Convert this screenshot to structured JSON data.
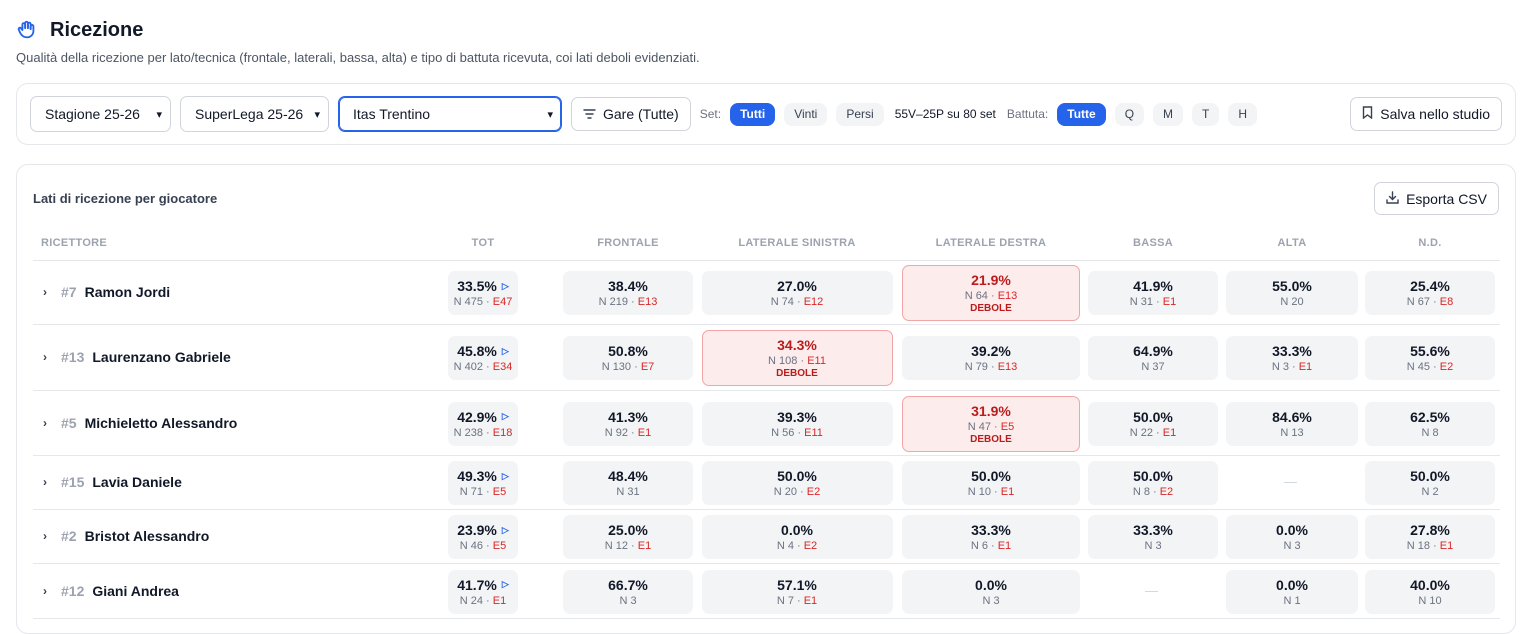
{
  "page": {
    "title": "Ricezione",
    "subtitle": "Qualità della ricezione per lato/tecnica (frontale, laterali, bassa, alta) e tipo di battuta ricevuta, coi lati deboli evidenziati."
  },
  "filters": {
    "season": "Stagione 25-26",
    "league": "SuperLega 25-26",
    "team": "Itas Trentino",
    "matches_button": "Gare (Tutte)",
    "set_label": "Set:",
    "set_options": [
      "Tutti",
      "Vinti",
      "Persi"
    ],
    "set_selected": "Tutti",
    "summary": "55V–25P su 80 set",
    "serve_label": "Battuta:",
    "serve_options": [
      "Tutte",
      "Q",
      "M",
      "T",
      "H"
    ],
    "serve_selected": "Tutte",
    "save_button": "Salva nello studio"
  },
  "table": {
    "title": "Lati di ricezione per giocatore",
    "export_button": "Esporta CSV",
    "columns": [
      "RICETTORE",
      "TOT",
      "FRONTALE",
      "LATERALE SINISTRA",
      "LATERALE DESTRA",
      "BASSA",
      "ALTA",
      "N.D."
    ],
    "weak_label": "DEBOLE",
    "rows": [
      {
        "num": "#7",
        "name": "Ramon Jordi",
        "cells": [
          {
            "pct": "33.5%",
            "n": "N 475",
            "e": "E47"
          },
          {
            "pct": "38.4%",
            "n": "N 219",
            "e": "E13"
          },
          {
            "pct": "27.0%",
            "n": "N 74",
            "e": "E12"
          },
          {
            "pct": "21.9%",
            "n": "N 64",
            "e": "E13",
            "weak": true
          },
          {
            "pct": "41.9%",
            "n": "N 31",
            "e": "E1"
          },
          {
            "pct": "55.0%",
            "n": "N 20",
            "e": ""
          },
          {
            "pct": "25.4%",
            "n": "N 67",
            "e": "E8"
          }
        ]
      },
      {
        "num": "#13",
        "name": "Laurenzano Gabriele",
        "cells": [
          {
            "pct": "45.8%",
            "n": "N 402",
            "e": "E34"
          },
          {
            "pct": "50.8%",
            "n": "N 130",
            "e": "E7"
          },
          {
            "pct": "34.3%",
            "n": "N 108",
            "e": "E11",
            "weak": true
          },
          {
            "pct": "39.2%",
            "n": "N 79",
            "e": "E13"
          },
          {
            "pct": "64.9%",
            "n": "N 37",
            "e": ""
          },
          {
            "pct": "33.3%",
            "n": "N 3",
            "e": "E1"
          },
          {
            "pct": "55.6%",
            "n": "N 45",
            "e": "E2"
          }
        ]
      },
      {
        "num": "#5",
        "name": "Michieletto Alessandro",
        "cells": [
          {
            "pct": "42.9%",
            "n": "N 238",
            "e": "E18"
          },
          {
            "pct": "41.3%",
            "n": "N 92",
            "e": "E1"
          },
          {
            "pct": "39.3%",
            "n": "N 56",
            "e": "E11"
          },
          {
            "pct": "31.9%",
            "n": "N 47",
            "e": "E5",
            "weak": true
          },
          {
            "pct": "50.0%",
            "n": "N 22",
            "e": "E1"
          },
          {
            "pct": "84.6%",
            "n": "N 13",
            "e": ""
          },
          {
            "pct": "62.5%",
            "n": "N 8",
            "e": ""
          }
        ]
      },
      {
        "num": "#15",
        "name": "Lavia Daniele",
        "cells": [
          {
            "pct": "49.3%",
            "n": "N 71",
            "e": "E5"
          },
          {
            "pct": "48.4%",
            "n": "N 31",
            "e": ""
          },
          {
            "pct": "50.0%",
            "n": "N 20",
            "e": "E2"
          },
          {
            "pct": "50.0%",
            "n": "N 10",
            "e": "E1"
          },
          {
            "pct": "50.0%",
            "n": "N 8",
            "e": "E2"
          },
          null,
          {
            "pct": "50.0%",
            "n": "N 2",
            "e": ""
          }
        ]
      },
      {
        "num": "#2",
        "name": "Bristot Alessandro",
        "cells": [
          {
            "pct": "23.9%",
            "n": "N 46",
            "e": "E5"
          },
          {
            "pct": "25.0%",
            "n": "N 12",
            "e": "E1"
          },
          {
            "pct": "0.0%",
            "n": "N 4",
            "e": "E2"
          },
          {
            "pct": "33.3%",
            "n": "N 6",
            "e": "E1"
          },
          {
            "pct": "33.3%",
            "n": "N 3",
            "e": ""
          },
          {
            "pct": "0.0%",
            "n": "N 3",
            "e": ""
          },
          {
            "pct": "27.8%",
            "n": "N 18",
            "e": "E1"
          }
        ]
      },
      {
        "num": "#12",
        "name": "Giani Andrea",
        "cells": [
          {
            "pct": "41.7%",
            "n": "N 24",
            "e": "E1"
          },
          {
            "pct": "66.7%",
            "n": "N 3",
            "e": ""
          },
          {
            "pct": "57.1%",
            "n": "N 7",
            "e": "E1"
          },
          {
            "pct": "0.0%",
            "n": "N 3",
            "e": ""
          },
          null,
          {
            "pct": "0.0%",
            "n": "N 1",
            "e": ""
          },
          {
            "pct": "40.0%",
            "n": "N 10",
            "e": ""
          }
        ]
      }
    ]
  },
  "colors": {
    "accent": "#2563eb",
    "weak_bg": "#fdecec",
    "weak_text": "#b91c1c",
    "error": "#dc2626"
  }
}
